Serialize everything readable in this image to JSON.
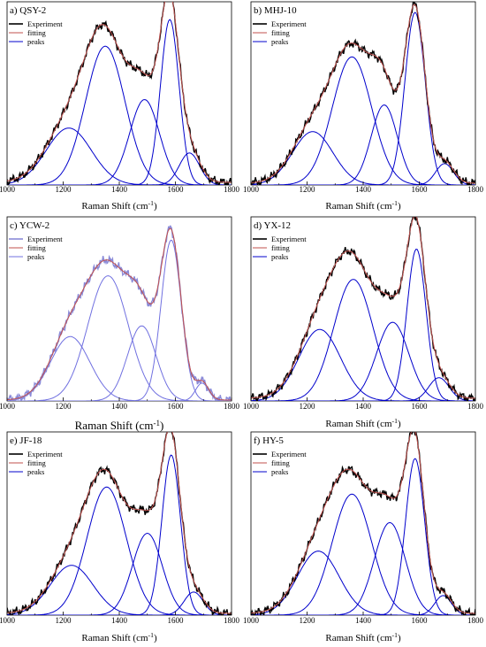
{
  "figure": {
    "background": "#ffffff"
  },
  "chart_data": [
    {
      "type": "line",
      "title": "a) QSY-2",
      "xlabel": "Raman Shift (cm⁻¹)",
      "xlim": [
        1000,
        1800
      ],
      "xticks": [
        "1000",
        "1200",
        "1400",
        "1600",
        "1800"
      ],
      "ylabel": "",
      "legend": {
        "placement": "top-left",
        "entries": [
          "Experiment",
          "fitting",
          "peaks"
        ]
      },
      "series": [
        {
          "name": "Experiment",
          "color": "#000000"
        },
        {
          "name": "fitting",
          "color": "#c0504d"
        },
        {
          "name": "peaks",
          "color": "#0000cc"
        }
      ],
      "peaks": [
        {
          "center": 1220,
          "height": 0.32,
          "fwhm": 190
        },
        {
          "center": 1350,
          "height": 0.78,
          "fwhm": 165
        },
        {
          "center": 1490,
          "height": 0.48,
          "fwhm": 125
        },
        {
          "center": 1580,
          "height": 0.93,
          "fwhm": 78
        },
        {
          "center": 1650,
          "height": 0.18,
          "fwhm": 85
        }
      ],
      "baseline": 0.015
    },
    {
      "type": "line",
      "title": "b) MHJ-10",
      "xlabel": "Raman Shift (cm⁻¹)",
      "xlim": [
        1000,
        1800
      ],
      "xticks": [
        "1000",
        "1200",
        "1400",
        "1600",
        "1800"
      ],
      "ylabel": "",
      "legend": {
        "placement": "top-left",
        "entries": [
          "Experiment",
          "fitting",
          "peaks"
        ]
      },
      "series": [
        {
          "name": "Experiment",
          "color": "#000000"
        },
        {
          "name": "fitting",
          "color": "#c0504d"
        },
        {
          "name": "peaks",
          "color": "#0000cc"
        }
      ],
      "peaks": [
        {
          "center": 1220,
          "height": 0.3,
          "fwhm": 170
        },
        {
          "center": 1360,
          "height": 0.72,
          "fwhm": 165
        },
        {
          "center": 1475,
          "height": 0.45,
          "fwhm": 110
        },
        {
          "center": 1585,
          "height": 0.97,
          "fwhm": 85
        },
        {
          "center": 1690,
          "height": 0.12,
          "fwhm": 75
        }
      ],
      "baseline": 0.01
    },
    {
      "type": "line",
      "title": "c) YCW-2",
      "xlabel": "Raman Shift (cm⁻¹)",
      "xlim": [
        1000,
        1800
      ],
      "xticks": [
        "1000",
        "1200",
        "1400",
        "1600",
        "1800"
      ],
      "ylabel": "",
      "legend": {
        "placement": "top-left",
        "entries": [
          "Experiment",
          "fitting",
          "peaks"
        ]
      },
      "series": [
        {
          "name": "Experiment",
          "color": "#8a8ad8"
        },
        {
          "name": "fitting",
          "color": "#c0504d"
        },
        {
          "name": "peaks",
          "color": "#7070e0"
        }
      ],
      "peaks": [
        {
          "center": 1225,
          "height": 0.36,
          "fwhm": 165
        },
        {
          "center": 1360,
          "height": 0.7,
          "fwhm": 170
        },
        {
          "center": 1480,
          "height": 0.42,
          "fwhm": 120
        },
        {
          "center": 1585,
          "height": 0.9,
          "fwhm": 85
        },
        {
          "center": 1695,
          "height": 0.1,
          "fwhm": 55
        }
      ],
      "baseline": 0.005
    },
    {
      "type": "line",
      "title": "d) YX-12",
      "xlabel": "Raman Shift (cm⁻¹)",
      "xlim": [
        1000,
        1800
      ],
      "xticks": [
        "1000",
        "1200",
        "1400",
        "1600",
        "1800"
      ],
      "ylabel": "",
      "legend": {
        "placement": "top-left",
        "entries": [
          "Experiment",
          "fitting",
          "peaks"
        ]
      },
      "series": [
        {
          "name": "Experiment",
          "color": "#000000"
        },
        {
          "name": "fitting",
          "color": "#c0504d"
        },
        {
          "name": "peaks",
          "color": "#0000cc"
        }
      ],
      "peaks": [
        {
          "center": 1245,
          "height": 0.4,
          "fwhm": 175
        },
        {
          "center": 1365,
          "height": 0.68,
          "fwhm": 165
        },
        {
          "center": 1505,
          "height": 0.44,
          "fwhm": 135
        },
        {
          "center": 1590,
          "height": 0.85,
          "fwhm": 80
        },
        {
          "center": 1670,
          "height": 0.13,
          "fwhm": 85
        }
      ],
      "baseline": 0.015
    },
    {
      "type": "line",
      "title": "e) JF-18",
      "xlabel": "Raman Shift (cm⁻¹)",
      "xlim": [
        1000,
        1800
      ],
      "xticks": [
        "1000",
        "1200",
        "1400",
        "1600",
        "1800"
      ],
      "ylabel": "",
      "legend": {
        "placement": "top-left",
        "entries": [
          "Experiment",
          "fitting",
          "peaks"
        ]
      },
      "series": [
        {
          "name": "Experiment",
          "color": "#000000"
        },
        {
          "name": "fitting",
          "color": "#c0504d"
        },
        {
          "name": "peaks",
          "color": "#0000cc"
        }
      ],
      "peaks": [
        {
          "center": 1230,
          "height": 0.28,
          "fwhm": 180
        },
        {
          "center": 1355,
          "height": 0.72,
          "fwhm": 165
        },
        {
          "center": 1500,
          "height": 0.46,
          "fwhm": 125
        },
        {
          "center": 1585,
          "height": 0.9,
          "fwhm": 78
        },
        {
          "center": 1665,
          "height": 0.13,
          "fwhm": 80
        }
      ],
      "baseline": 0.01
    },
    {
      "type": "line",
      "title": "f) HY-5",
      "xlabel": "Raman Shift (cm⁻¹)",
      "xlim": [
        1000,
        1800
      ],
      "xticks": [
        "1000",
        "1200",
        "1400",
        "1600",
        "1800"
      ],
      "ylabel": "",
      "legend": {
        "placement": "top-left",
        "entries": [
          "Experiment",
          "fitting",
          "peaks"
        ]
      },
      "series": [
        {
          "name": "Experiment",
          "color": "#000000"
        },
        {
          "name": "fitting",
          "color": "#c0504d"
        },
        {
          "name": "peaks",
          "color": "#0000cc"
        }
      ],
      "peaks": [
        {
          "center": 1240,
          "height": 0.36,
          "fwhm": 175
        },
        {
          "center": 1360,
          "height": 0.68,
          "fwhm": 165
        },
        {
          "center": 1495,
          "height": 0.52,
          "fwhm": 130
        },
        {
          "center": 1585,
          "height": 0.88,
          "fwhm": 80
        },
        {
          "center": 1685,
          "height": 0.11,
          "fwhm": 70
        }
      ],
      "baseline": 0.01
    }
  ]
}
